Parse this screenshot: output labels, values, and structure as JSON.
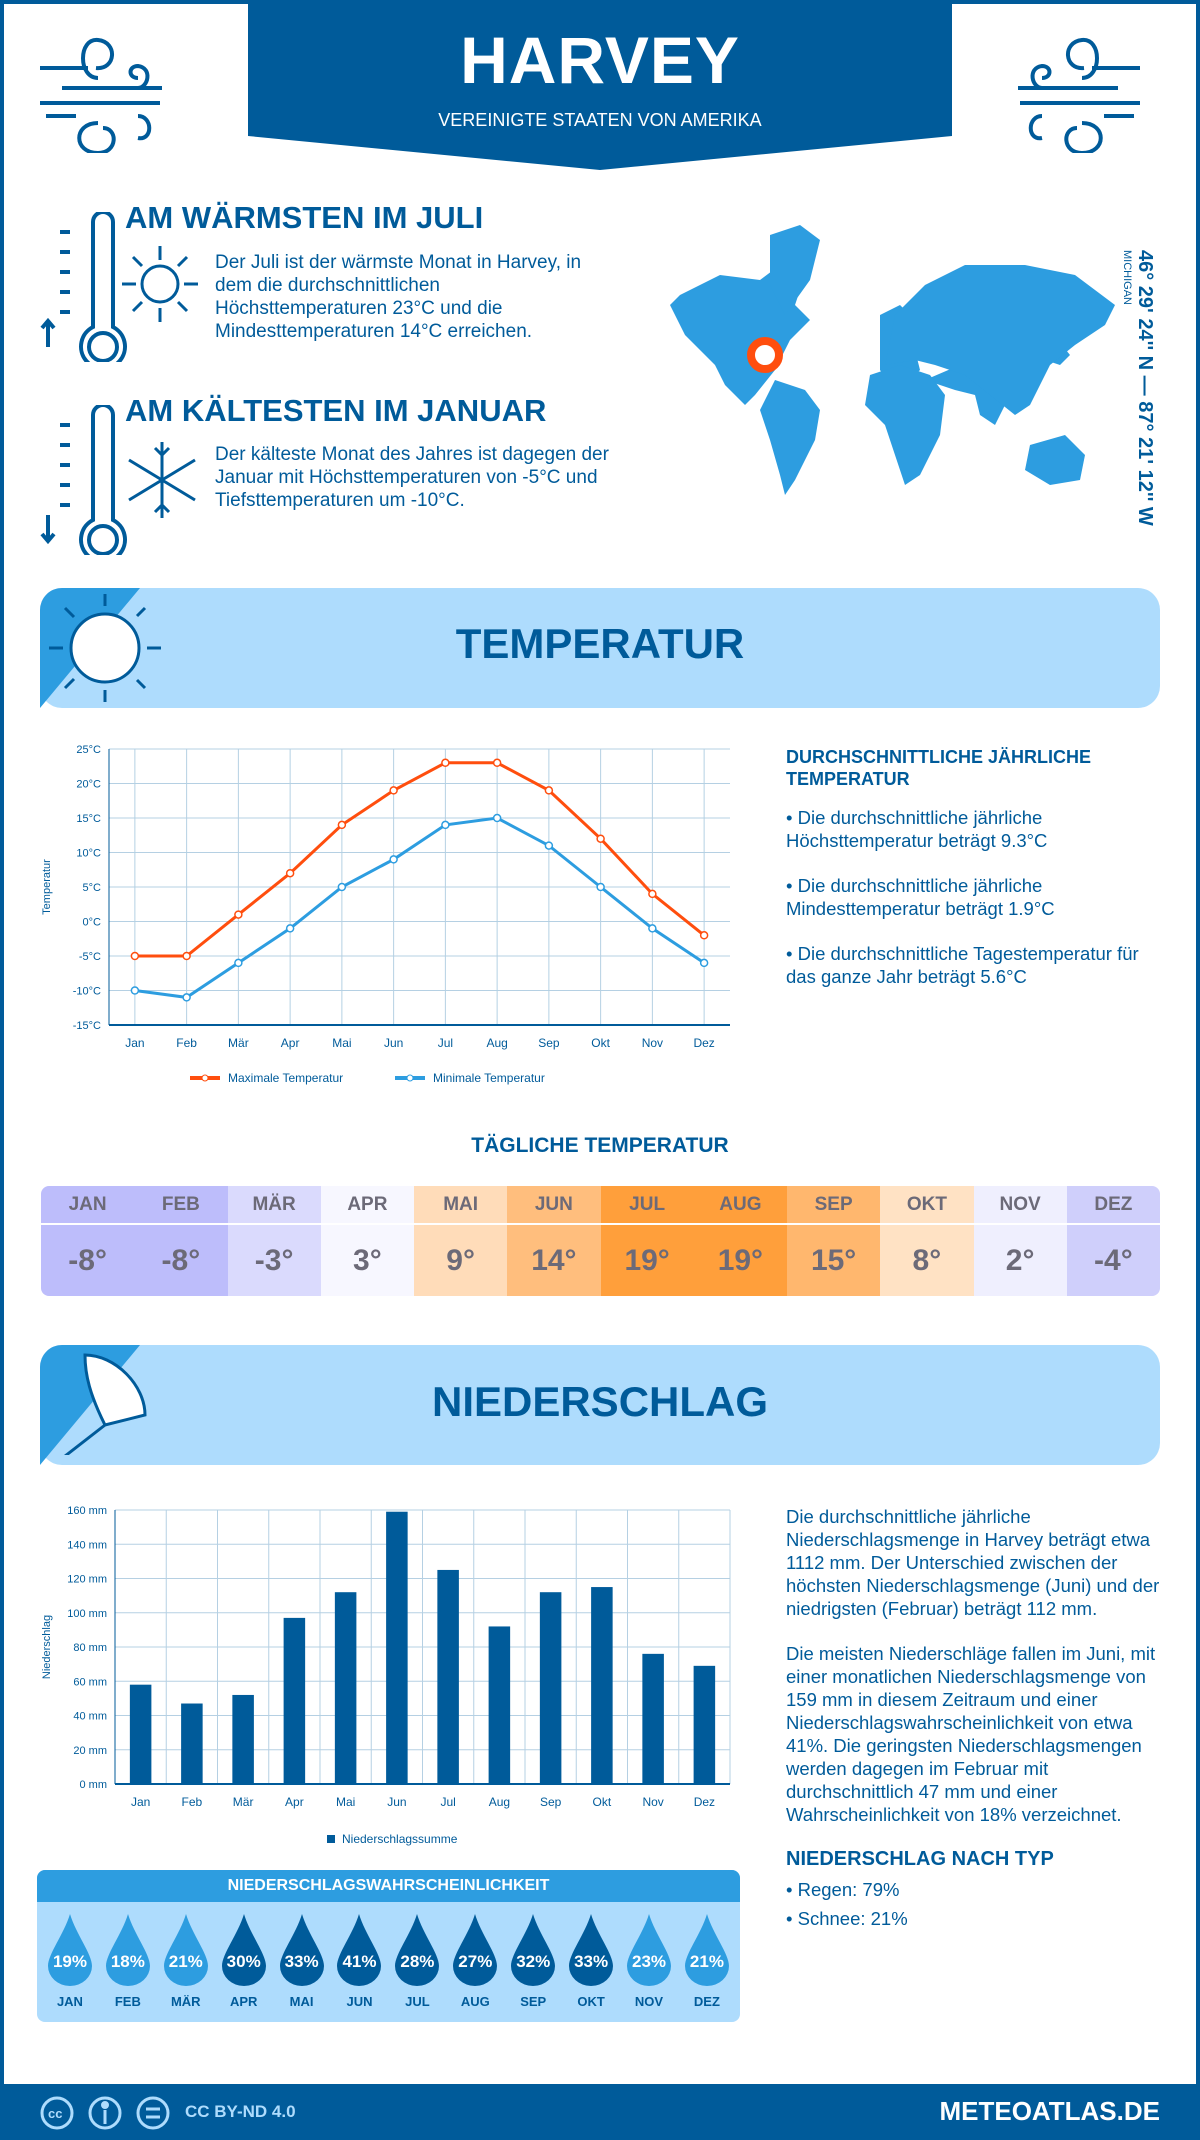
{
  "header": {
    "city": "HARVEY",
    "country": "VEREINIGTE STAATEN VON AMERIKA"
  },
  "warmest": {
    "title": "AM WÄRMSTEN IM JULI",
    "text": "Der Juli ist der wärmste Monat in Harvey, in dem die durchschnittlichen Höchsttemperaturen 23°C und die Mindesttemperaturen 14°C erreichen."
  },
  "coldest": {
    "title": "AM KÄLTESTEN IM JANUAR",
    "text": "Der kälteste Monat des Jahres ist dagegen der Januar mit Höchsttemperaturen von -5°C und Tiefsttemperaturen um -10°C."
  },
  "location": {
    "coords": "46° 29' 24'' N — 87° 21' 12'' W",
    "region": "MICHIGAN"
  },
  "temperature_section": {
    "title": "TEMPERATUR",
    "side_title": "DURCHSCHNITTLICHE JÄHRLICHE TEMPERATUR",
    "bullets": [
      "• Die durchschnittliche jährliche Höchsttemperatur beträgt 9.3°C",
      "• Die durchschnittliche jährliche Mindesttemperatur beträgt 1.9°C",
      "• Die durchschnittliche Tagestemperatur für das ganze Jahr beträgt 5.6°C"
    ]
  },
  "daily": {
    "title": "TÄGLICHE TEMPERATUR",
    "months": [
      "JAN",
      "FEB",
      "MÄR",
      "APR",
      "MAI",
      "JUN",
      "JUL",
      "AUG",
      "SEP",
      "OKT",
      "NOV",
      "DEZ"
    ],
    "values": [
      "-8°",
      "-8°",
      "-3°",
      "3°",
      "9°",
      "14°",
      "19°",
      "19°",
      "15°",
      "8°",
      "2°",
      "-4°"
    ],
    "colors": [
      "#bdbdfb",
      "#bdbdfb",
      "#dadafd",
      "#f7f7ff",
      "#ffdcb9",
      "#ffbe7d",
      "#ff9f3b",
      "#ff9f3b",
      "#ffb76e",
      "#ffe2c4",
      "#efeffe",
      "#cfcffb"
    ]
  },
  "precip_section": {
    "title": "NIEDERSCHLAG",
    "paragraphs": [
      "Die durchschnittliche jährliche Niederschlagsmenge in Harvey beträgt etwa 1112 mm. Der Unterschied zwischen der höchsten Niederschlagsmenge (Juni) und der niedrigsten (Februar) beträgt 112 mm.",
      "Die meisten Niederschläge fallen im Juni, mit einer monatlichen Niederschlagsmenge von 159 mm in diesem Zeitraum und einer Niederschlagswahrscheinlichkeit von etwa 41%. Die geringsten Niederschlagsmengen werden dagegen im Februar mit durchschnittlich 47 mm und einer Wahrscheinlichkeit von 18% verzeichnet."
    ],
    "type_title": "NIEDERSCHLAG NACH TYP",
    "types": [
      "• Regen: 79%",
      "• Schnee: 21%"
    ]
  },
  "probability": {
    "title": "NIEDERSCHLAGSWAHRSCHEINLICHKEIT",
    "months": [
      "JAN",
      "FEB",
      "MÄR",
      "APR",
      "MAI",
      "JUN",
      "JUL",
      "AUG",
      "SEP",
      "OKT",
      "NOV",
      "DEZ"
    ],
    "values": [
      "19%",
      "18%",
      "21%",
      "30%",
      "33%",
      "41%",
      "28%",
      "27%",
      "32%",
      "33%",
      "23%",
      "21%"
    ],
    "colors": {
      "high": "#005b9a",
      "low": "#2d9de0"
    }
  },
  "footer": {
    "license": "CC BY-ND 4.0",
    "site": "METEOATLAS.DE"
  },
  "chart_data": [
    {
      "type": "line",
      "categories": [
        "Jan",
        "Feb",
        "Mär",
        "Apr",
        "Mai",
        "Jun",
        "Jul",
        "Aug",
        "Sep",
        "Okt",
        "Nov",
        "Dez"
      ],
      "series": [
        {
          "name": "Maximale Temperatur",
          "color": "#ff4e0e",
          "values": [
            -5,
            -5,
            1,
            7,
            14,
            19,
            23,
            23,
            19,
            12,
            4,
            -2
          ]
        },
        {
          "name": "Minimale Temperatur",
          "color": "#2d9de0",
          "values": [
            -10,
            -11,
            -6,
            -1,
            5,
            9,
            14,
            15,
            11,
            5,
            -1,
            -6
          ]
        }
      ],
      "ylabel": "Temperatur",
      "ylim": [
        -15,
        25
      ],
      "yticks": [
        "-15°C",
        "-10°C",
        "-5°C",
        "0°C",
        "5°C",
        "10°C",
        "15°C",
        "20°C",
        "25°C"
      ],
      "grid": true,
      "legend": "bottom"
    },
    {
      "type": "bar",
      "categories": [
        "Jan",
        "Feb",
        "Mär",
        "Apr",
        "Mai",
        "Jun",
        "Jul",
        "Aug",
        "Sep",
        "Okt",
        "Nov",
        "Dez"
      ],
      "series": [
        {
          "name": "Niederschlagssumme",
          "color": "#005b9a",
          "values": [
            58,
            47,
            52,
            97,
            112,
            159,
            125,
            92,
            112,
            115,
            76,
            69
          ]
        }
      ],
      "ylabel": "Niederschlag",
      "ylim": [
        0,
        160
      ],
      "yticks": [
        "0 mm",
        "20 mm",
        "40 mm",
        "60 mm",
        "80 mm",
        "100 mm",
        "120 mm",
        "140 mm",
        "160 mm"
      ],
      "grid": true,
      "legend": "bottom"
    }
  ]
}
